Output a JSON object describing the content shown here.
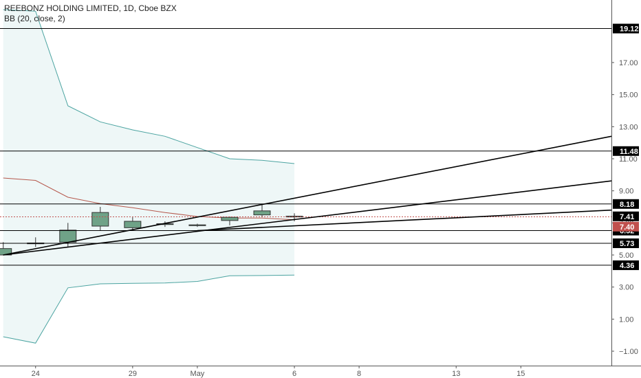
{
  "header": {
    "symbol_line": "REEBONZ HOLDING LIMITED, 1D, Cboe BZX",
    "indicator_line": "BB (20, close, 2)"
  },
  "colors": {
    "candle_up": "#6fa287",
    "candle_down": "#6fa287",
    "bb_band": "#4aa3a0",
    "bb_basis": "#b5574b",
    "bb_fill": "#eef7f7",
    "hline": "#000000",
    "trendline": "#000000",
    "price_label": "#c0504d",
    "axis_text": "#555555"
  },
  "chart_data": {
    "type": "candlestick",
    "title": "REEBONZ HOLDING LIMITED, 1D, Cboe BZX",
    "ylim": [
      -1.9,
      20.9
    ],
    "y_ticks": [
      -1.0,
      1.0,
      3.0,
      5.0,
      7.0,
      9.0,
      11.0,
      13.0,
      15.0,
      17.0
    ],
    "y_tick_labels": [
      "−1.00",
      "1.00",
      "3.00",
      "5.00",
      "7.00",
      "9.00",
      "11.00",
      "13.00",
      "15.00",
      "17.00"
    ],
    "x_ticks": [
      {
        "index": 1,
        "label": "24"
      },
      {
        "index": 4,
        "label": "29"
      },
      {
        "index": 6,
        "label": "May"
      },
      {
        "index": 9,
        "label": "6"
      },
      {
        "index": 11,
        "label": "8"
      },
      {
        "index": 14,
        "label": "13"
      },
      {
        "index": 16,
        "label": "15"
      }
    ],
    "x_range": [
      -0.1,
      18.8
    ],
    "candles": [
      {
        "i": 0,
        "open": 5.0,
        "high": 5.8,
        "low": 5.0,
        "close": 5.4
      },
      {
        "i": 1,
        "open": 5.7,
        "high": 6.1,
        "low": 5.5,
        "close": 5.75
      },
      {
        "i": 2,
        "open": 5.8,
        "high": 7.0,
        "low": 5.5,
        "close": 6.55
      },
      {
        "i": 3,
        "open": 6.8,
        "high": 8.0,
        "low": 6.5,
        "close": 7.65
      },
      {
        "i": 4,
        "open": 7.1,
        "high": 7.35,
        "low": 6.6,
        "close": 6.7
      },
      {
        "i": 5,
        "open": 6.9,
        "high": 7.1,
        "low": 6.75,
        "close": 6.95
      },
      {
        "i": 6,
        "open": 6.85,
        "high": 6.95,
        "low": 6.75,
        "close": 6.88
      },
      {
        "i": 7,
        "open": 7.15,
        "high": 7.4,
        "low": 6.85,
        "close": 7.35
      },
      {
        "i": 8,
        "open": 7.5,
        "high": 8.2,
        "low": 7.35,
        "close": 7.75
      },
      {
        "i": 9,
        "open": 7.42,
        "high": 7.6,
        "low": 7.1,
        "close": 7.4
      }
    ],
    "bollinger": {
      "name": "BB (20, close, 2)",
      "x": [
        0,
        1,
        2,
        3,
        4,
        5,
        6,
        7,
        8,
        9
      ],
      "upper": [
        20.3,
        20.2,
        14.3,
        13.3,
        12.8,
        12.4,
        11.7,
        11.0,
        10.9,
        10.7
      ],
      "basis": [
        9.8,
        9.65,
        8.6,
        8.2,
        7.95,
        7.65,
        7.4,
        7.3,
        7.3,
        7.2
      ],
      "lower": [
        -0.1,
        -0.5,
        2.95,
        3.2,
        3.23,
        3.25,
        3.35,
        3.7,
        3.72,
        3.75
      ]
    },
    "horizontal_levels": [
      19.12,
      11.48,
      8.18,
      6.52,
      5.73,
      4.36
    ],
    "horizontal_level_labels": [
      "19.12",
      "11.48",
      "8.18",
      "6.52",
      "5.73",
      "4.36"
    ],
    "trendlines": [
      {
        "x1": 0,
        "y1": 5.0,
        "x2": 18.8,
        "y2": 12.4
      },
      {
        "x1": 0,
        "y1": 5.0,
        "x2": 18.8,
        "y2": 9.62
      },
      {
        "x1": 6,
        "y1": 6.52,
        "x2": 18.8,
        "y2": 7.8
      }
    ],
    "current_price": {
      "value": 7.41,
      "label": "7.41"
    },
    "last_close": {
      "value": 7.4,
      "label": "7.40"
    },
    "last_close_dotted_value": 7.38
  }
}
